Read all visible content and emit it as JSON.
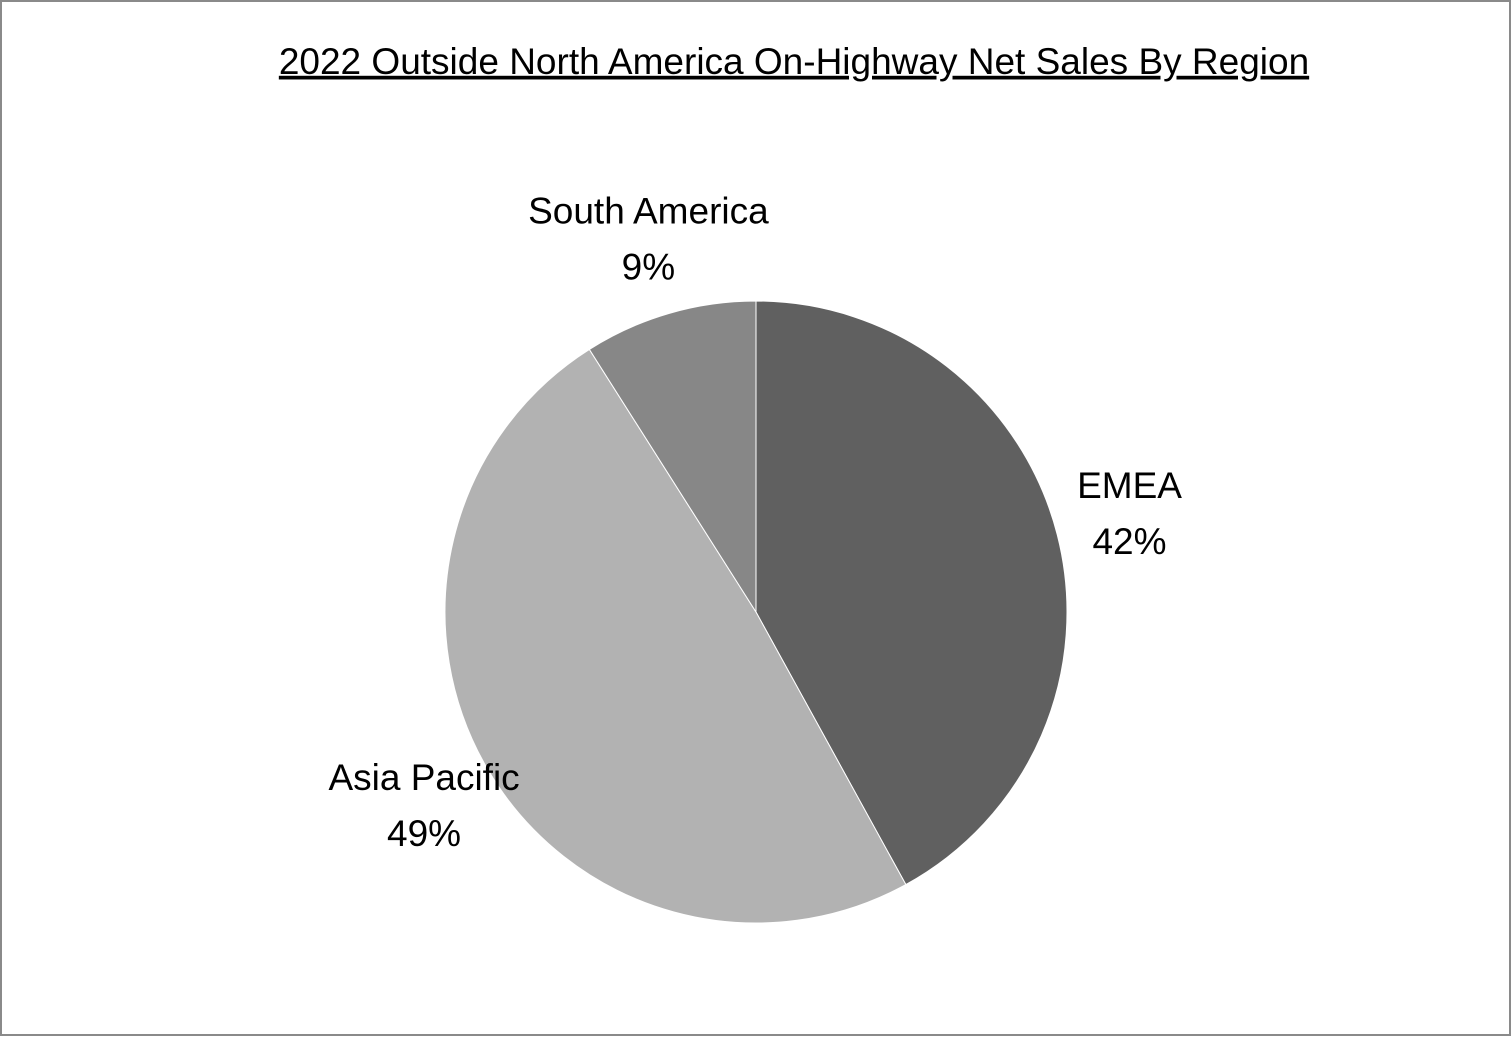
{
  "chart_data": {
    "type": "pie",
    "title": "2022 Outside North America On-Highway Net Sales By Region",
    "categories": [
      "EMEA",
      "Asia Pacific",
      "South America"
    ],
    "values": [
      42,
      49,
      9
    ],
    "value_labels": [
      "42%",
      "49%",
      "9%"
    ],
    "colors": [
      "#606060",
      "#b2b2b2",
      "#878787"
    ]
  }
}
